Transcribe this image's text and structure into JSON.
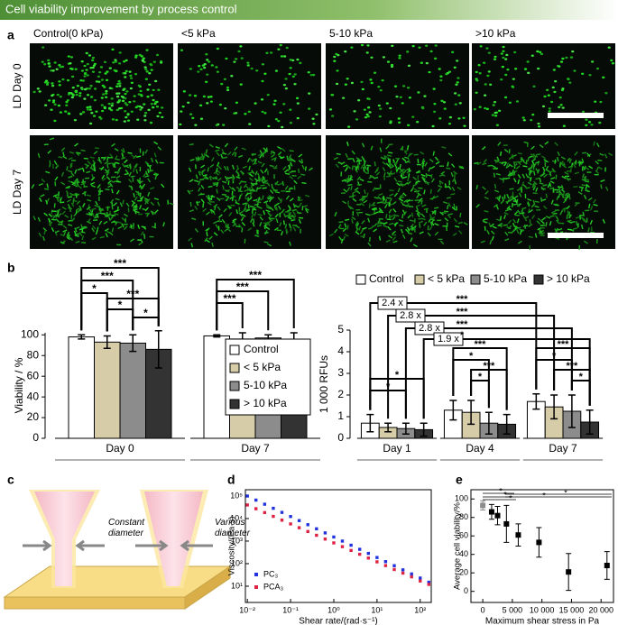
{
  "header": {
    "title": "Cell viability improvement by process control"
  },
  "panel_labels": [
    "a",
    "b",
    "c",
    "d",
    "e"
  ],
  "images": {
    "columns": [
      "Control(0 kPa)",
      "<5 kPa",
      "5-10 kPa",
      ">10 kPa"
    ],
    "rows": [
      "LD Day 0",
      "LD Day 7"
    ]
  },
  "diagram": {
    "labels": [
      "Constant diameter",
      "Various diameter"
    ]
  },
  "chart_data": [
    {
      "type": "bar",
      "y_label": "Viability / %",
      "categories": [
        "Day 0",
        "Day 7"
      ],
      "ylim": [
        0,
        102
      ],
      "yticks": [
        0,
        20,
        40,
        60,
        80,
        100
      ],
      "legend": "inside-right",
      "series": [
        {
          "name": "Control",
          "color": "#ffffff",
          "values": [
            98,
            99
          ],
          "errors": [
            2,
            1
          ]
        },
        {
          "name": "< 5 kPa",
          "color": "#d6cca8",
          "values": [
            93,
            96
          ],
          "errors": [
            6,
            6
          ]
        },
        {
          "name": "5-10 kPa",
          "color": "#8c8c8c",
          "values": [
            92,
            97
          ],
          "errors": [
            8,
            3
          ]
        },
        {
          "name": "> 10 kPa",
          "color": "#333333",
          "values": [
            86,
            95
          ],
          "errors": [
            18,
            7
          ]
        }
      ],
      "annotations": [
        "***",
        "***",
        "*",
        "***",
        "*",
        "*",
        "***",
        "***",
        "***"
      ]
    },
    {
      "type": "bar",
      "y_label": "1 000 RFUs",
      "categories": [
        "Day 1",
        "Day 4",
        "Day 7"
      ],
      "ylim": [
        0,
        5
      ],
      "yticks": [
        0,
        1,
        2,
        3,
        4,
        5
      ],
      "legend": "top",
      "series": [
        {
          "name": "Control",
          "color": "#ffffff",
          "values": [
            0.7,
            1.3,
            1.7
          ],
          "errors": [
            0.4,
            0.45,
            0.35
          ]
        },
        {
          "name": "< 5 kPa",
          "color": "#d6cca8",
          "values": [
            0.5,
            1.2,
            1.45
          ],
          "errors": [
            0.2,
            0.55,
            0.55
          ]
        },
        {
          "name": "5-10 kPa",
          "color": "#8c8c8c",
          "values": [
            0.45,
            0.7,
            1.25
          ],
          "errors": [
            0.25,
            0.5,
            0.75
          ]
        },
        {
          "name": "> 10 kPa",
          "color": "#333333",
          "values": [
            0.4,
            0.65,
            0.75
          ],
          "errors": [
            0.3,
            0.45,
            0.55
          ]
        }
      ],
      "fold_labels": [
        "2.4 x",
        "2.8 x",
        "2.8 x",
        "1.9 x"
      ],
      "annotations": [
        "*",
        "*",
        "***",
        "*",
        "***",
        "*",
        "***",
        "*",
        "***",
        "*",
        "***",
        "***",
        "***",
        "*"
      ]
    },
    {
      "type": "scatter",
      "x_label": "Shear rate/(rad·s⁻¹)",
      "y_label": "Viscosity/(Pa·s)",
      "log_x": true,
      "log_y": true,
      "legend": "bottom-left",
      "xlim": [
        0.009,
        180
      ],
      "ylim": [
        1.9,
        190000
      ],
      "xticks": [
        {
          "value": 0.01,
          "label": "10⁻²"
        },
        {
          "value": 0.1,
          "label": "10⁻¹"
        },
        {
          "value": 1,
          "label": "10⁰"
        },
        {
          "value": 10,
          "label": "10¹"
        },
        {
          "value": 100,
          "label": "10²"
        }
      ],
      "yticks": [
        {
          "value": 10,
          "label": "10¹"
        },
        {
          "value": 100,
          "label": "10²"
        },
        {
          "value": 1000,
          "label": "10³"
        },
        {
          "value": 10000,
          "label": "10⁴"
        },
        {
          "value": 100000,
          "label": "10⁵"
        }
      ],
      "x": [
        0.01,
        0.0158,
        0.0251,
        0.0398,
        0.0631,
        0.1,
        0.158,
        0.251,
        0.398,
        0.631,
        1,
        1.58,
        2.51,
        3.98,
        6.31,
        10,
        15.8,
        25.1,
        39.8,
        63.1,
        100,
        158
      ],
      "series": [
        {
          "name": "PC₃",
          "color": "#2233dd",
          "values": [
            100000,
            65800,
            43300,
            28500,
            18700,
            12300,
            8110,
            5340,
            3510,
            2310,
            1520,
            1000,
            658,
            433,
            285,
            187,
            123,
            81,
            53,
            35,
            23,
            15
          ]
        },
        {
          "name": "PCA₃",
          "color": "#dd2244",
          "values": [
            40000,
            27200,
            18400,
            12500,
            8500,
            5770,
            3920,
            2660,
            1810,
            1230,
            833,
            566,
            384,
            261,
            177,
            120,
            82,
            55,
            38,
            26,
            17,
            12
          ]
        }
      ]
    },
    {
      "type": "scatter",
      "x_label": "Maximum shear stress in Pa",
      "y_label": "Average cell viability/%",
      "xlim": [
        -2000,
        22100
      ],
      "ylim": [
        -12,
        110
      ],
      "xticks": [
        0,
        {
          "value": 5000,
          "label": "5 000"
        },
        {
          "value": 10000,
          "label": "10 000"
        },
        {
          "value": 15000,
          "label": "15 000"
        },
        {
          "value": 20000,
          "label": "20 000"
        }
      ],
      "yticks": [
        0,
        20,
        40,
        60,
        80,
        100
      ],
      "x": [
        0,
        1500,
        2500,
        4000,
        6000,
        9500,
        14500,
        21000
      ],
      "values": [
        93,
        86,
        82,
        73,
        61,
        53,
        21,
        28
      ],
      "errors": [
        5,
        8,
        10,
        20,
        12,
        16,
        20,
        15
      ],
      "colors": [
        "#8c8c8c",
        "#000000",
        "#000000",
        "#000000",
        "#000000",
        "#000000",
        "#000000",
        "#000000"
      ],
      "annotations": [
        "*",
        "*",
        "*",
        "*",
        "*"
      ]
    }
  ]
}
